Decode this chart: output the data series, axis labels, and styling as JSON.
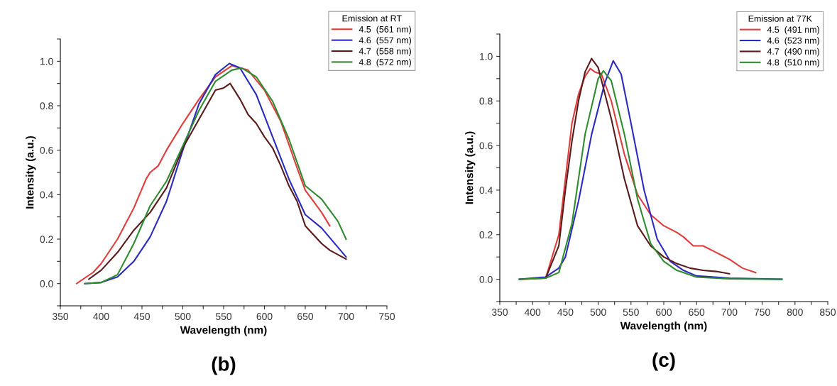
{
  "chart_data": [
    {
      "type": "line",
      "xlabel": "Wavelength (nm)",
      "ylabel": "Intensity (a.u.)",
      "legend_title": "Emission at RT",
      "legend": "top right",
      "grid": false,
      "annotations": [
        "(b)"
      ],
      "xlim": [
        350,
        750
      ],
      "xticks": [
        350,
        {
          "value": 375,
          "label": null
        },
        400,
        {
          "value": 425,
          "label": null
        },
        450,
        {
          "value": 475,
          "label": null
        },
        500,
        {
          "value": 525,
          "label": null
        },
        550,
        {
          "value": 575,
          "label": null
        },
        600,
        {
          "value": 625,
          "label": null
        },
        650,
        {
          "value": 675,
          "label": null
        },
        700,
        {
          "value": 725,
          "label": null
        },
        750
      ],
      "ylim": [
        -0.1,
        1.1
      ],
      "yticks": [
        {
          "value": -0.1,
          "label": null
        },
        {
          "value": 0.0,
          "label": "0.0"
        },
        {
          "value": 0.1,
          "label": null
        },
        0.2,
        {
          "value": 0.3,
          "label": null
        },
        0.4,
        {
          "value": 0.5,
          "label": null
        },
        0.6,
        {
          "value": 0.7,
          "label": null
        },
        0.8,
        {
          "value": 0.9,
          "label": null
        },
        {
          "value": 1.0,
          "label": "1.0"
        },
        {
          "value": 1.1,
          "label": null
        }
      ],
      "series": [
        {
          "name": "4.5  (561 nm)",
          "color": "#e03c3c",
          "x": [
            370,
            390,
            400,
            420,
            440,
            455,
            460,
            470,
            480,
            500,
            520,
            540,
            560,
            580,
            600,
            620,
            640,
            650,
            660,
            670,
            680
          ],
          "values": [
            0.0,
            0.05,
            0.09,
            0.2,
            0.34,
            0.47,
            0.5,
            0.53,
            0.6,
            0.72,
            0.83,
            0.93,
            0.98,
            0.96,
            0.87,
            0.73,
            0.52,
            0.42,
            0.37,
            0.32,
            0.26
          ]
        },
        {
          "name": "4.6  (557 nm)",
          "color": "#2a2ac0",
          "x": [
            380,
            400,
            420,
            440,
            460,
            480,
            500,
            520,
            540,
            557,
            570,
            590,
            610,
            630,
            650,
            670,
            700
          ],
          "values": [
            0.0,
            0.005,
            0.03,
            0.1,
            0.21,
            0.37,
            0.6,
            0.81,
            0.94,
            0.99,
            0.97,
            0.85,
            0.66,
            0.47,
            0.31,
            0.25,
            0.12
          ]
        },
        {
          "name": "4.7  (558 nm)",
          "color": "#5a1a1a",
          "x": [
            385,
            400,
            420,
            440,
            460,
            480,
            500,
            520,
            540,
            550,
            558,
            570,
            580,
            590,
            600,
            610,
            620,
            630,
            640,
            650,
            660,
            670,
            680,
            700
          ],
          "values": [
            0.02,
            0.06,
            0.14,
            0.24,
            0.32,
            0.43,
            0.61,
            0.74,
            0.87,
            0.88,
            0.9,
            0.83,
            0.76,
            0.72,
            0.66,
            0.61,
            0.53,
            0.44,
            0.37,
            0.26,
            0.22,
            0.18,
            0.15,
            0.11
          ]
        },
        {
          "name": "4.8  (572 nm)",
          "color": "#2e8b2e",
          "x": [
            380,
            400,
            420,
            440,
            460,
            480,
            500,
            520,
            540,
            560,
            572,
            590,
            610,
            630,
            650,
            660,
            670,
            690,
            700
          ],
          "values": [
            0.0,
            0.005,
            0.04,
            0.18,
            0.35,
            0.46,
            0.62,
            0.78,
            0.91,
            0.96,
            0.97,
            0.93,
            0.82,
            0.65,
            0.44,
            0.41,
            0.38,
            0.28,
            0.2
          ]
        }
      ]
    },
    {
      "type": "line",
      "xlabel": "Wavelength (nm)",
      "ylabel": "Intensity (a.u.)",
      "legend_title": "Emission at 77K",
      "legend": "top right",
      "grid": false,
      "annotations": [
        "(c)"
      ],
      "xlim": [
        350,
        850
      ],
      "xticks": [
        350,
        {
          "value": 375,
          "label": null
        },
        400,
        {
          "value": 425,
          "label": null
        },
        450,
        {
          "value": 475,
          "label": null
        },
        500,
        {
          "value": 525,
          "label": null
        },
        550,
        {
          "value": 575,
          "label": null
        },
        600,
        {
          "value": 625,
          "label": null
        },
        650,
        {
          "value": 675,
          "label": null
        },
        700,
        {
          "value": 725,
          "label": null
        },
        750,
        {
          "value": 775,
          "label": null
        },
        800,
        {
          "value": 825,
          "label": null
        },
        850
      ],
      "ylim": [
        -0.1,
        1.1
      ],
      "yticks": [
        {
          "value": -0.1,
          "label": null
        },
        {
          "value": 0.0,
          "label": "0.0"
        },
        {
          "value": 0.1,
          "label": null
        },
        0.2,
        {
          "value": 0.3,
          "label": null
        },
        0.4,
        {
          "value": 0.5,
          "label": null
        },
        0.6,
        {
          "value": 0.7,
          "label": null
        },
        0.8,
        {
          "value": 0.9,
          "label": null
        },
        {
          "value": 1.0,
          "label": "1.0"
        },
        {
          "value": 1.1,
          "label": null
        }
      ],
      "series": [
        {
          "name": "4.5  (491 nm)",
          "color": "#e03c3c",
          "x": [
            380,
            420,
            440,
            450,
            460,
            470,
            480,
            488,
            495,
            505,
            520,
            540,
            560,
            580,
            600,
            620,
            630,
            645,
            660,
            680,
            700,
            720,
            740
          ],
          "values": [
            0.0,
            0.005,
            0.2,
            0.45,
            0.7,
            0.83,
            0.91,
            0.945,
            0.93,
            0.92,
            0.8,
            0.56,
            0.38,
            0.29,
            0.24,
            0.21,
            0.19,
            0.15,
            0.15,
            0.12,
            0.09,
            0.05,
            0.03
          ]
        },
        {
          "name": "4.6  (523 nm)",
          "color": "#2a2ac0",
          "x": [
            380,
            420,
            440,
            450,
            470,
            490,
            510,
            523,
            535,
            550,
            570,
            590,
            610,
            630,
            650,
            700,
            780
          ],
          "values": [
            0.0,
            0.01,
            0.05,
            0.1,
            0.35,
            0.65,
            0.88,
            0.98,
            0.92,
            0.7,
            0.4,
            0.18,
            0.08,
            0.04,
            0.015,
            0.005,
            0.0
          ]
        },
        {
          "name": "4.7  (490 nm)",
          "color": "#5a1a1a",
          "x": [
            420,
            440,
            450,
            460,
            470,
            480,
            490,
            500,
            520,
            540,
            560,
            580,
            600,
            620,
            640,
            660,
            680,
            700
          ],
          "values": [
            0.005,
            0.15,
            0.4,
            0.62,
            0.8,
            0.93,
            0.99,
            0.95,
            0.72,
            0.45,
            0.24,
            0.15,
            0.1,
            0.07,
            0.05,
            0.04,
            0.035,
            0.025
          ]
        },
        {
          "name": "4.8  (510 nm)",
          "color": "#2e8b2e",
          "x": [
            380,
            420,
            440,
            460,
            480,
            500,
            508,
            520,
            540,
            560,
            580,
            600,
            620,
            650,
            700,
            780
          ],
          "values": [
            0.0,
            0.005,
            0.03,
            0.25,
            0.65,
            0.9,
            0.935,
            0.89,
            0.65,
            0.36,
            0.16,
            0.08,
            0.04,
            0.01,
            0.002,
            0.0
          ]
        }
      ]
    }
  ]
}
